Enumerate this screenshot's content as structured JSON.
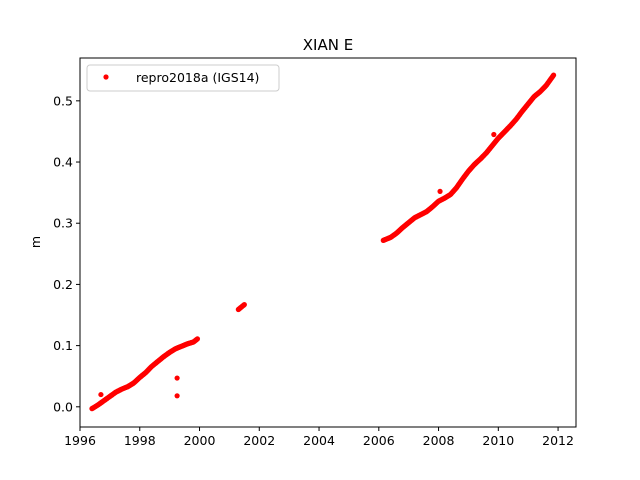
{
  "chart_data": {
    "type": "scatter",
    "title": "XIAN E",
    "xlabel": "",
    "ylabel": "m",
    "xlim": [
      1996.0,
      2012.6
    ],
    "ylim": [
      -0.033,
      0.57
    ],
    "xticks": [
      1996,
      1998,
      2000,
      2002,
      2004,
      2006,
      2008,
      2010,
      2012
    ],
    "yticks": [
      0.0,
      0.1,
      0.2,
      0.3,
      0.4,
      0.5
    ],
    "ytick_labels": [
      "0.0",
      "0.1",
      "0.2",
      "0.3",
      "0.4",
      "0.5"
    ],
    "grid": false,
    "legend_position": "top-left",
    "series": [
      {
        "name": "repro2018a (IGS14)",
        "color": "#ff0000",
        "marker": "circle",
        "segments": [
          {
            "x": [
              1996.4,
              1996.6,
              1996.8,
              1997.0,
              1997.2,
              1997.4,
              1997.6,
              1997.8,
              1998.0,
              1998.2,
              1998.4,
              1998.6,
              1998.8,
              1999.0,
              1999.2,
              1999.4,
              1999.6,
              1999.8,
              1999.93
            ],
            "y": [
              -0.003,
              0.003,
              0.01,
              0.017,
              0.024,
              0.029,
              0.033,
              0.039,
              0.048,
              0.056,
              0.066,
              0.074,
              0.082,
              0.089,
              0.095,
              0.099,
              0.103,
              0.106,
              0.111
            ]
          },
          {
            "x": [
              2001.3,
              2001.4,
              2001.5
            ],
            "y": [
              0.159,
              0.163,
              0.167
            ]
          },
          {
            "x": [
              2006.15,
              2006.4,
              2006.6,
              2006.8,
              2007.0,
              2007.2,
              2007.4,
              2007.6,
              2007.8,
              2008.0,
              2008.2,
              2008.4,
              2008.6,
              2008.8,
              2009.0,
              2009.2,
              2009.4,
              2009.6,
              2009.8,
              2010.0,
              2010.2,
              2010.4,
              2010.6,
              2010.8,
              2011.0,
              2011.2,
              2011.4,
              2011.6,
              2011.85
            ],
            "y": [
              0.272,
              0.277,
              0.284,
              0.293,
              0.301,
              0.309,
              0.314,
              0.319,
              0.327,
              0.336,
              0.341,
              0.347,
              0.358,
              0.372,
              0.385,
              0.396,
              0.405,
              0.415,
              0.427,
              0.439,
              0.449,
              0.459,
              0.47,
              0.483,
              0.495,
              0.507,
              0.515,
              0.525,
              0.542
            ]
          }
        ],
        "outliers": {
          "x": [
            1996.7,
            1999.25,
            1999.25,
            2008.05,
            2009.85
          ],
          "y": [
            0.02,
            0.047,
            0.018,
            0.352,
            0.445
          ]
        }
      }
    ]
  }
}
